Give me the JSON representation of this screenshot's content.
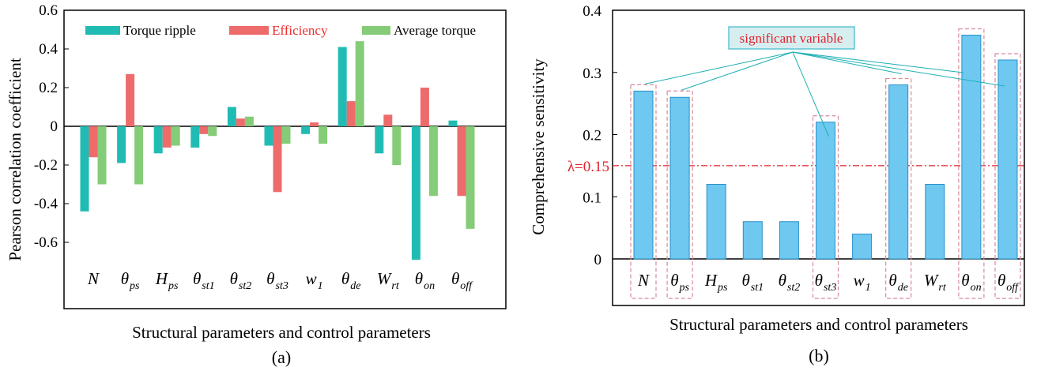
{
  "chart_data": [
    {
      "type": "bar",
      "caption": "(a)",
      "ylabel": "Pearson correlation coefficient",
      "xlabel": "Structural parameters and control parameters",
      "ylim": [
        -0.6,
        0.6
      ],
      "yticks": [
        "0.6",
        "0.4",
        "0.2",
        "0",
        "-0.2",
        "-0.4",
        "-0.6"
      ],
      "categories": [
        {
          "base": "N",
          "sub": ""
        },
        {
          "base": "θ",
          "sub": "ps"
        },
        {
          "base": "H",
          "sub": "ps"
        },
        {
          "base": "θ",
          "sub": "st1"
        },
        {
          "base": "θ",
          "sub": "st2"
        },
        {
          "base": "θ",
          "sub": "st3"
        },
        {
          "base": "w",
          "sub": "1"
        },
        {
          "base": "θ",
          "sub": "de"
        },
        {
          "base": "W",
          "sub": "rt"
        },
        {
          "base": "θ",
          "sub": "on"
        },
        {
          "base": "θ",
          "sub": "off"
        }
      ],
      "series": [
        {
          "name": "Torque ripple",
          "color": "#20bcb4",
          "label_color": "#000000",
          "values": [
            -0.44,
            -0.19,
            -0.14,
            -0.11,
            0.1,
            -0.1,
            -0.04,
            0.41,
            -0.14,
            -0.69,
            0.03
          ]
        },
        {
          "name": "Efficiency",
          "color": "#ee6b6b",
          "label_color": "#ee2b2b",
          "values": [
            -0.16,
            0.27,
            -0.11,
            -0.04,
            0.04,
            -0.34,
            0.02,
            0.13,
            0.06,
            0.2,
            -0.36
          ]
        },
        {
          "name": "Average torque",
          "color": "#84cc77",
          "label_color": "#000000",
          "values": [
            -0.3,
            -0.3,
            -0.1,
            -0.05,
            0.05,
            -0.09,
            -0.09,
            0.44,
            -0.2,
            -0.36,
            -0.53
          ]
        }
      ]
    },
    {
      "type": "bar",
      "caption": "(b)",
      "ylabel": "Comprehensive sensitivity",
      "xlabel": "Structural parameters and control parameters",
      "ylim": [
        0,
        0.4
      ],
      "yticks": [
        "0.4",
        "0.3",
        "0.2",
        "0.1",
        "0"
      ],
      "categories": [
        {
          "base": "N",
          "sub": ""
        },
        {
          "base": "θ",
          "sub": "ps"
        },
        {
          "base": "H",
          "sub": "ps"
        },
        {
          "base": "θ",
          "sub": "st1"
        },
        {
          "base": "θ",
          "sub": "st2"
        },
        {
          "base": "θ",
          "sub": "st3"
        },
        {
          "base": "w",
          "sub": "1"
        },
        {
          "base": "θ",
          "sub": "de"
        },
        {
          "base": "W",
          "sub": "rt"
        },
        {
          "base": "θ",
          "sub": "on"
        },
        {
          "base": "θ",
          "sub": "off"
        }
      ],
      "values": [
        0.27,
        0.26,
        0.12,
        0.06,
        0.06,
        0.22,
        0.04,
        0.28,
        0.12,
        0.36,
        0.32
      ],
      "bar_color": "#6ec8f0",
      "bar_edge": "#2a8fc8",
      "significant": [
        0,
        1,
        5,
        7,
        9,
        10
      ],
      "threshold": {
        "value": 0.15,
        "label": "λ=0.15",
        "color": "#e0202a"
      },
      "annotation": {
        "label": "significant variable",
        "text_color": "#e0202a",
        "box_fill": "#d7eef0",
        "box_edge": "#3cb8c8"
      }
    }
  ]
}
